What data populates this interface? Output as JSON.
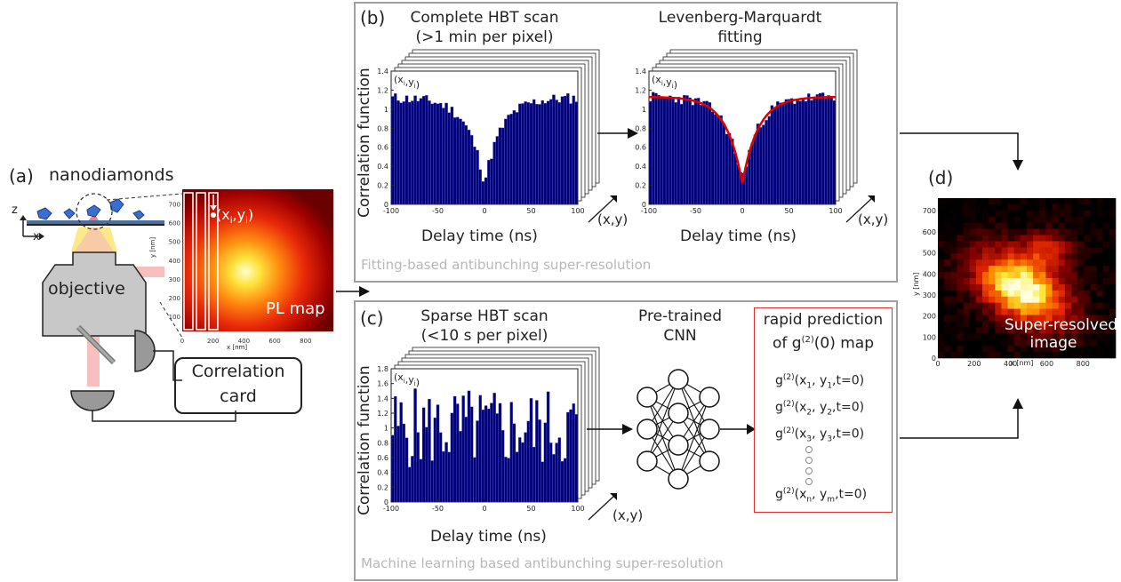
{
  "panel_a": {
    "letter": "(a)",
    "nanodiamonds_label": "nanodiamonds",
    "axis_z": "z",
    "axis_x": "x",
    "objective_label": "objective",
    "correlation_card": [
      "Correlation",
      "card"
    ],
    "pl_map_label": "PL map",
    "point_label": "(x",
    "point_sub_i": "i",
    "point_mid": ",y",
    "point_end": ")",
    "pl_map": {
      "xlabel": "x [nm]",
      "ylabel": "y [nm]",
      "xticks": [
        "0",
        "200",
        "400",
        "600",
        "800"
      ],
      "yticks": [
        "100",
        "200",
        "300",
        "400",
        "500",
        "600",
        "700"
      ]
    }
  },
  "panel_b": {
    "letter": "(b)",
    "left_title": [
      "Complete HBT scan",
      "(>1 min per pixel)"
    ],
    "right_title": [
      "Levenberg-Marquardt",
      "fitting"
    ],
    "ylabel": "Correlation function",
    "xlabel": "Delay time (ns)",
    "stack_label": "(x,y)",
    "caption": "Fitting-based antibunching super-resolution",
    "xticks": [
      "-100",
      "-50",
      "0",
      "50",
      "100"
    ],
    "yticks": [
      "0",
      "0.2",
      "0.4",
      "0.6",
      "0.8",
      "1",
      "1.2",
      "1.4"
    ]
  },
  "panel_c": {
    "letter": "(c)",
    "left_title": [
      "Sparse HBT scan",
      "(<10 s per pixel)"
    ],
    "cnn_title": [
      "Pre-trained",
      "CNN"
    ],
    "pred_title": [
      "rapid prediction",
      "of g"
    ],
    "pred_title_sup": "(2)",
    "pred_title_end": "(0) map",
    "ylabel": "Correlation function",
    "xlabel": "Delay time (ns)",
    "stack_label": "(x,y)",
    "caption": "Machine learning based antibunching super-resolution",
    "xticks": [
      "-100",
      "-50",
      "0",
      "50",
      "100"
    ],
    "yticks": [
      "0",
      "0.2",
      "0.4",
      "0.6",
      "0.8",
      "1",
      "1.2",
      "1.4",
      "1.6",
      "1.8"
    ],
    "predictions": [
      {
        "g": "g",
        "sup": "(2)",
        "text": "(x",
        "s1": "1",
        "mid": ", y",
        "s2": "1",
        "end": ",t=0)"
      },
      {
        "g": "g",
        "sup": "(2)",
        "text": "(x",
        "s1": "2",
        "mid": ", y",
        "s2": "2",
        "end": ",t=0)"
      },
      {
        "g": "g",
        "sup": "(2)",
        "text": "(x",
        "s1": "3",
        "mid": ", y",
        "s2": "3",
        "end": ",t=0)"
      },
      {
        "g": "g",
        "sup": "(2)",
        "text": "(x",
        "s1": "n",
        "mid": ", y",
        "s2": "m",
        "end": ",t=0)"
      }
    ]
  },
  "panel_d": {
    "letter": "(d)",
    "image_label": [
      "Super-resolved",
      "image"
    ],
    "xlabel": "x [nm]",
    "ylabel": "y [nm]",
    "xticks": [
      "0",
      "200",
      "400",
      "600",
      "800"
    ],
    "yticks": [
      "0",
      "100",
      "200",
      "300",
      "400",
      "500",
      "600",
      "700"
    ]
  },
  "hist_label": {
    "open": "(x",
    "sub_i": "i",
    "mid": ",y",
    "close": ")"
  },
  "chart_data": [
    {
      "type": "bar",
      "name": "complete_hbt",
      "xlabel": "Delay time (ns)",
      "ylabel": "Correlation function",
      "xlim": [
        -100,
        100
      ],
      "ylim": [
        0,
        1.4
      ],
      "bin_width_ns": 3,
      "approx_shape": "dip to ~0.23 at 0 ns, baseline ~1.12"
    },
    {
      "type": "bar",
      "name": "fitted_hbt",
      "xlabel": "Delay time (ns)",
      "ylabel": "Correlation function",
      "xlim": [
        -100,
        100
      ],
      "ylim": [
        0,
        1.4
      ],
      "fit_color": "#e00000",
      "approx_shape": "dip to ~0.22 at 0 ns, baseline ~1.13"
    },
    {
      "type": "bar",
      "name": "sparse_hbt",
      "xlabel": "Delay time (ns)",
      "ylabel": "Correlation function",
      "xlim": [
        -100,
        100
      ],
      "ylim": [
        0,
        1.8
      ],
      "approx_shape": "noisy, mean ~1.0"
    }
  ],
  "colors": {
    "bar_fill": "#00007a",
    "frame_gray": "#a0a0a0",
    "prediction_box": "#e03030",
    "fit_line": "#e00000"
  }
}
